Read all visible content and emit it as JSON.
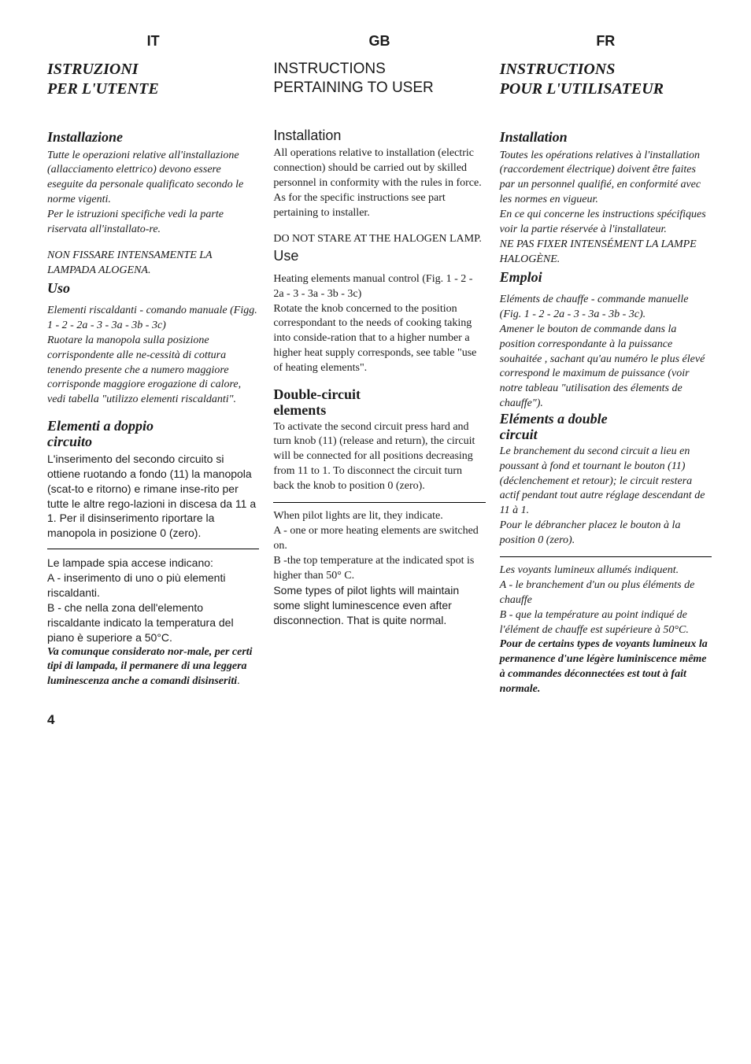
{
  "page_number": "4",
  "it": {
    "lang": "IT",
    "title_l1": "ISTRUZIONI",
    "title_l2": "PER L'UTENTE",
    "h_install": "Installazione",
    "p_install": "Tutte le operazioni relative all'installazione (allacciamento elettrico) devono essere eseguite da personale qualificato secondo le norme vigenti.",
    "p_install2": "Per le istruzioni specifiche vedi la parte riservata all'installato-re.",
    "warn": "NON FISSARE INTENSAMENTE LA LAMPADA ALOGENA.",
    "h_uso": "Uso",
    "p_uso1": "Elementi riscaldanti - comando manuale (Figg. 1 - 2 - 2a - 3 - 3a - 3b - 3c)",
    "p_uso2": "Ruotare la manopola sulla posizione corrispondente alle ne-cessità di cottura tenendo presente che a numero maggiore corrisponde maggiore erogazione di calore, vedi tabella \"utilizzo elementi riscaldanti\".",
    "h_dbl1": "Elementi a doppio",
    "h_dbl2": "circuito",
    "p_dbl": "L'inserimento del secondo circuito si ottiene ruotando a fondo (11) la manopola (scat-to e ritorno) e rimane inse-rito per tutte le altre rego-lazioni in discesa da 11 a 1. Per il disinserimento riportare la manopola in posizione 0 (zero).",
    "p_lamp1": "Le lampade spia accese indicano:",
    "p_lamp2": "A - inserimento di uno o più elementi riscaldanti.",
    "p_lamp3": "B - che nella zona dell'elemento riscaldante indicato la temperatura del piano è superiore a 50°C.",
    "p_lamp4": "Va comunque considerato nor-male, per certi tipi di lampada, il permanere di una leggera luminescenza anche a comandi disinseriti",
    "p_lamp4_end": "."
  },
  "gb": {
    "lang": "GB",
    "title_l1": "INSTRUCTIONS",
    "title_l2": "PERTAINING  TO USER",
    "h_install": "Installation",
    "p_install": "All operations relative to installation (electric connection) should be carried out by skilled personnel in conformity with the rules in force.",
    "p_install2": "As for the specific instructions see part pertaining to installer.",
    "warn": "DO NOT STARE AT THE HALOGEN LAMP.",
    "h_use": "Use",
    "p_use1": "Heating elements manual control (Fig. 1 - 2 - 2a - 3 - 3a - 3b - 3c)",
    "p_use2": "Rotate the knob concerned to the position correspondant to the needs of cooking taking into conside-ration that to a higher number a higher heat supply corresponds, see table \"use of heating elements\".",
    "h_dbl1": "Double-circuit",
    "h_dbl2": "elements",
    "p_dbl": "To activate the second circuit press hard and turn knob (11) (release and return), the circuit will be connected for all positions decreasing from 11 to 1. To disconnect the circuit turn back the knob to position 0 (zero).",
    "p_lamp1": "When pilot lights are lit, they indicate.",
    "p_lamp2": "A - one or more heating elements are switched on.",
    "p_lamp3": "B -the top temperature at the indicated spot is higher than 50° C.",
    "p_lamp4": "Some types of pilot lights will maintain some slight luminescence even after disconnection. That is quite normal."
  },
  "fr": {
    "lang": "FR",
    "title_l1": "INSTRUCTIONS",
    "title_l2": "POUR L'UTILISATEUR",
    "h_install": "Installation",
    "p_install": "Toutes les opérations relatives à l'installation (raccordement électrique) doivent être faites par un personnel qualifié, en conformité avec les normes en vigueur.",
    "p_install2": "En ce qui concerne les instructions spécifiques voir la partie réservée à l'installateur.",
    "warn": "NE PAS FIXER INTENSÉMENT LA LAMPE HALOGÈNE.",
    "h_emp": "Emploi",
    "p_emp1": "Eléments de chauffe - commande manuelle (Fig. 1 - 2 - 2a - 3 - 3a - 3b - 3c).",
    "p_emp2": "Amener le bouton de commande dans la position correspondante à la puissance souhaitée , sachant qu'au numéro le plus élevé correspond le maximum de puissance (voir notre tableau \"utilisation des élements de chauffe\").",
    "h_dbl1": "Eléments a double",
    "h_dbl2": "circuit",
    "p_dbl": "Le branchement du second circuit a lieu en poussant à fond et tournant le bouton (11) (déclenchement et retour); le circuit restera actif pendant tout autre réglage descendant de 11 à 1.",
    "p_dbl2": "Pour le débrancher placez le bouton à la position 0 (zero).",
    "p_lamp1": "Les voyants lumineux allumés indiquent.",
    "p_lamp2": "A - le branchement d'un ou plus éléments de chauffe",
    "p_lamp3": "B - que la température au point indiqué de l'élément de chauffe est supérieure à 50°C.",
    "p_lamp4": "Pour de certains types de voyants lumineux la permanence d'une légère luminiscence même à commandes déconnectées est tout à fait normale."
  }
}
